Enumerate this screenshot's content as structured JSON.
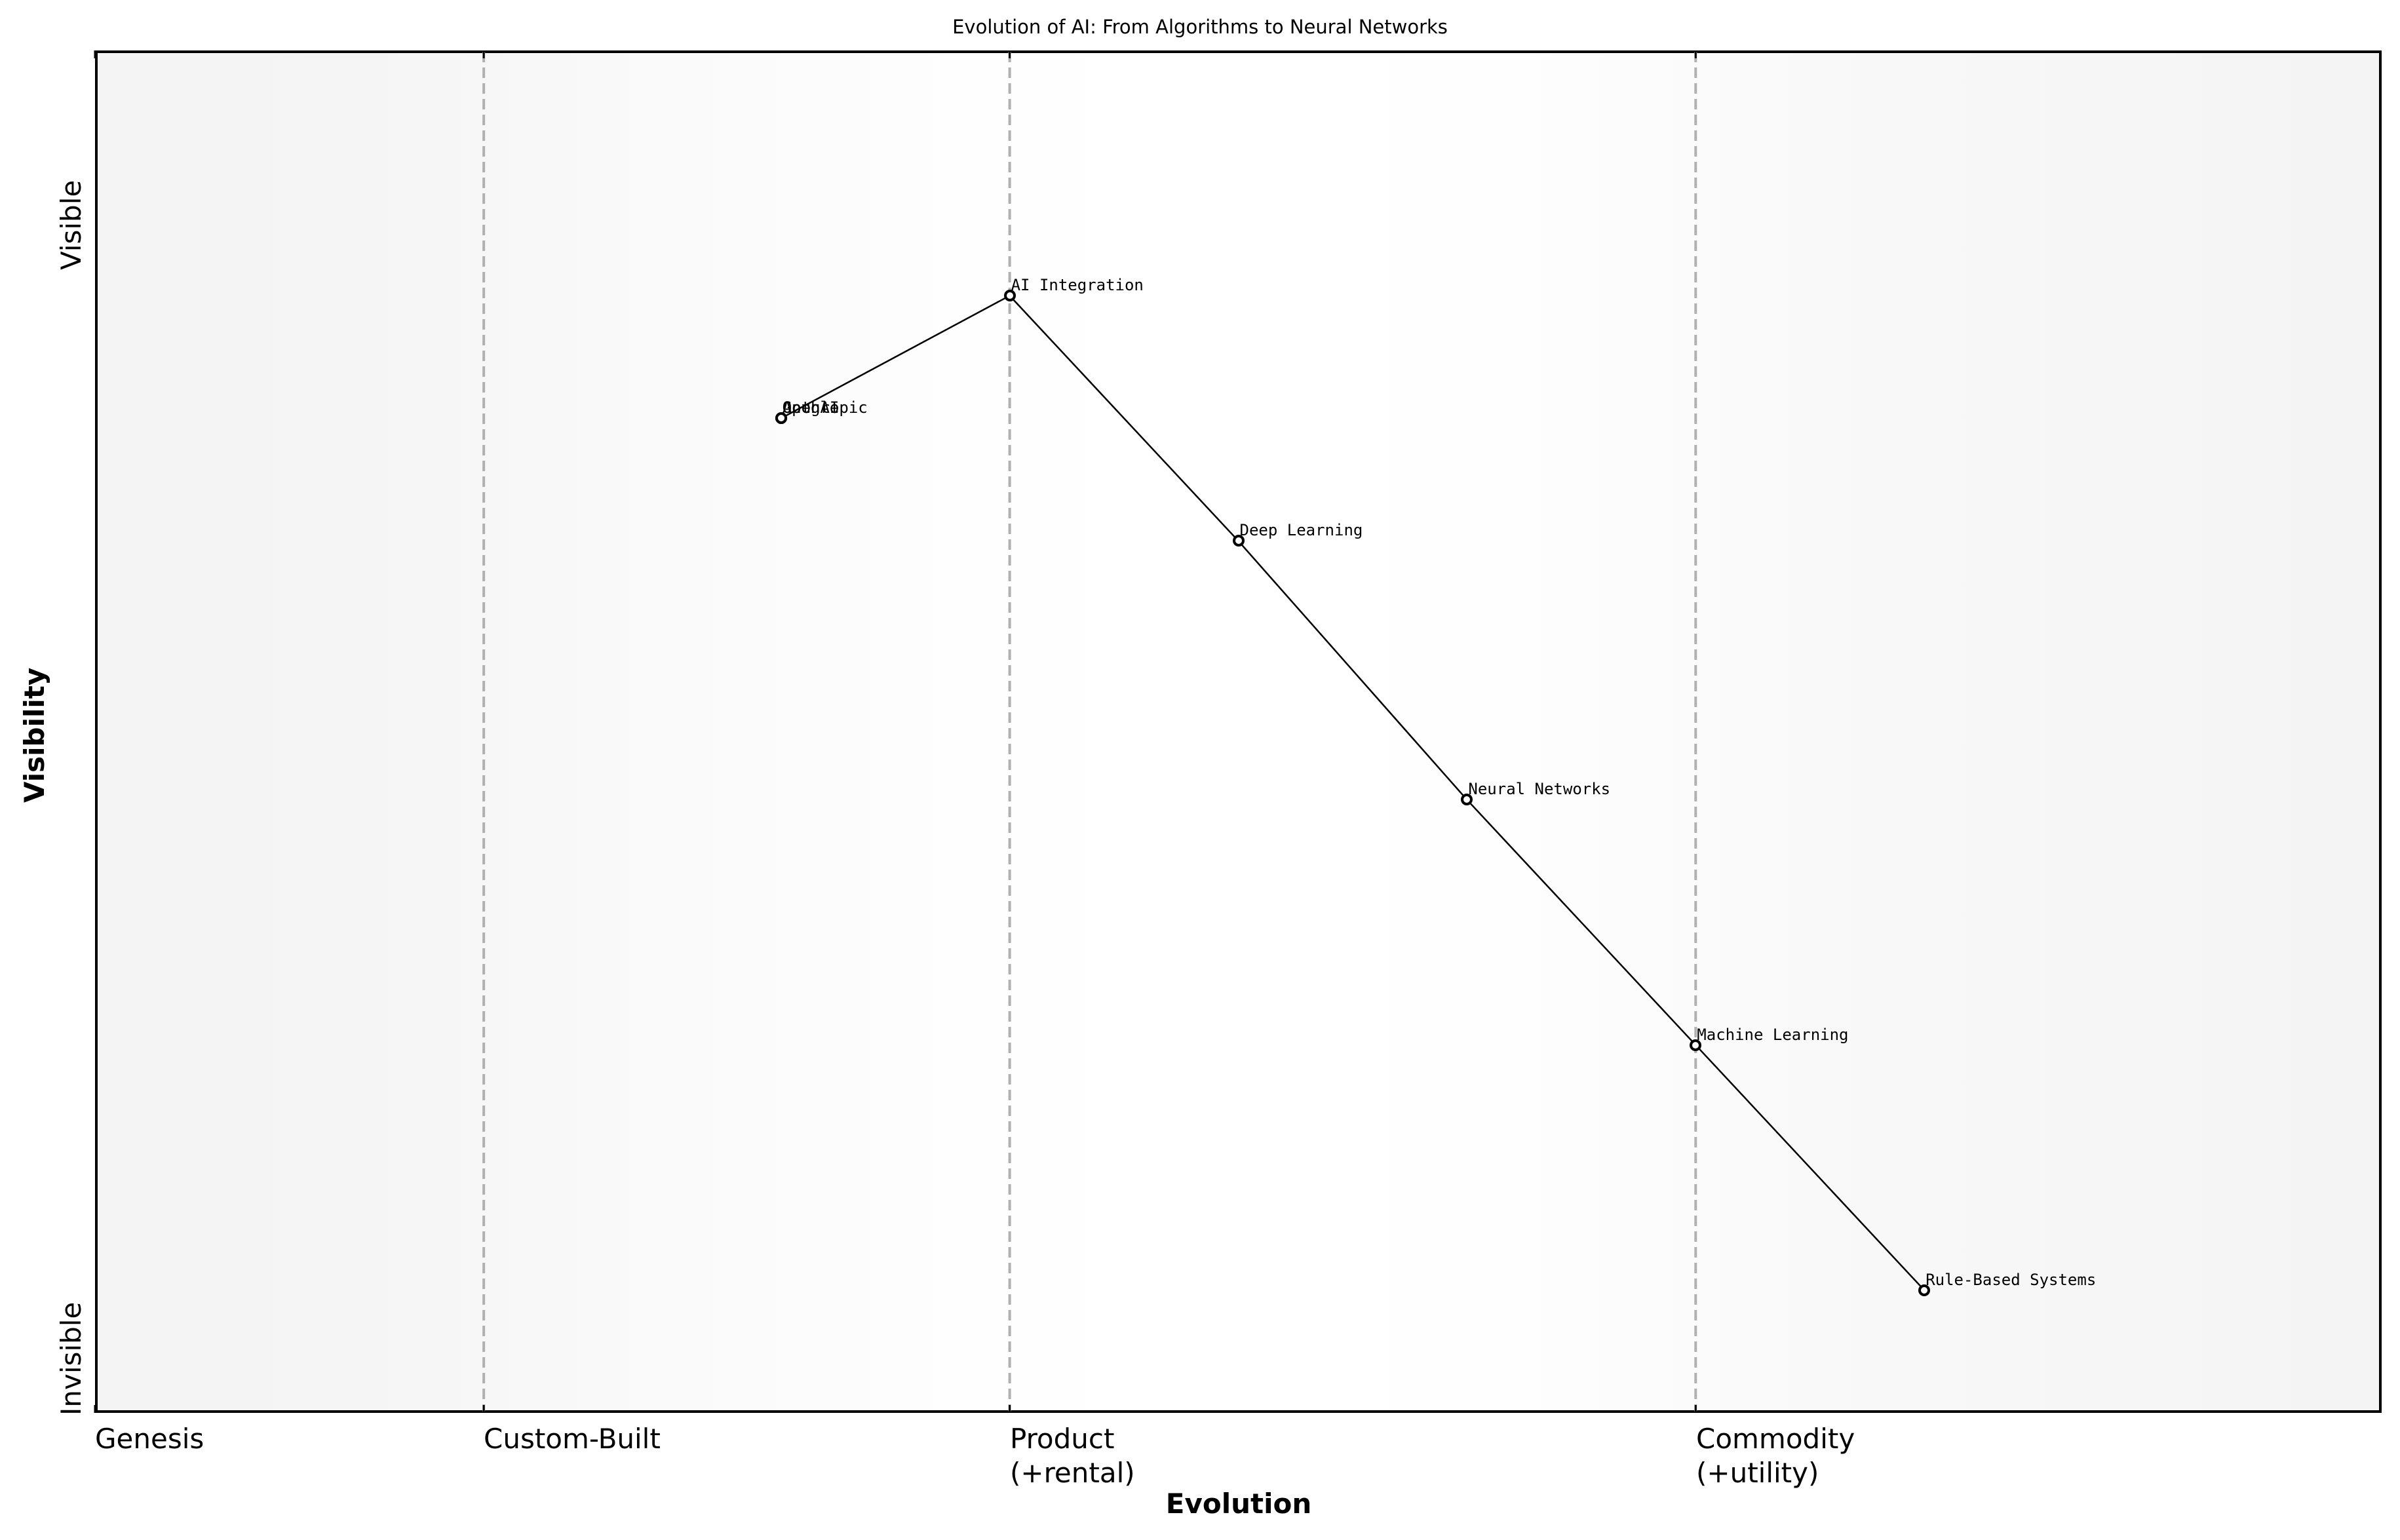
{
  "chart_data": {
    "type": "line",
    "title": "Evolution of AI: From Algorithms to Neural Networks",
    "xlabel": "Evolution",
    "ylabel": "Visibility",
    "xlim": [
      0,
      1
    ],
    "ylim": [
      0,
      1
    ],
    "grid": false,
    "x_ticks": [
      {
        "pos": 0.0,
        "label": "Genesis"
      },
      {
        "pos": 0.17,
        "label": "Custom-Built"
      },
      {
        "pos": 0.4,
        "label": "Product\n(+rental)"
      },
      {
        "pos": 0.7,
        "label": "Commodity\n(+utility)"
      }
    ],
    "y_ticks": [
      {
        "pos": 0.0,
        "label": "Invisible"
      },
      {
        "pos": 0.84,
        "label": "Visible"
      }
    ],
    "stage_dividers_x": [
      0.17,
      0.4,
      0.7
    ],
    "points": [
      {
        "label": "OpenAI",
        "x": 0.3,
        "y": 0.73
      },
      {
        "label": "Google",
        "x": 0.3,
        "y": 0.73
      },
      {
        "label": "Anthropic",
        "x": 0.3,
        "y": 0.73
      },
      {
        "label": "AI Integration",
        "x": 0.4,
        "y": 0.82
      },
      {
        "label": "Deep Learning",
        "x": 0.5,
        "y": 0.64
      },
      {
        "label": "Neural Networks",
        "x": 0.6,
        "y": 0.45
      },
      {
        "label": "Machine Learning",
        "x": 0.7,
        "y": 0.27
      },
      {
        "label": "Rule-Based Systems",
        "x": 0.8,
        "y": 0.09
      }
    ],
    "links": [
      [
        "OpenAI",
        "AI Integration"
      ],
      [
        "AI Integration",
        "Deep Learning"
      ],
      [
        "Deep Learning",
        "Neural Networks"
      ],
      [
        "Neural Networks",
        "Machine Learning"
      ],
      [
        "Machine Learning",
        "Rule-Based Systems"
      ]
    ],
    "colors": {
      "line": "#000000",
      "marker_edge": "#000000",
      "marker_fill": "#ffffff",
      "divider": "#b0b0b0",
      "background_edge": "#f4f4f4",
      "background_center": "#ffffff"
    }
  }
}
